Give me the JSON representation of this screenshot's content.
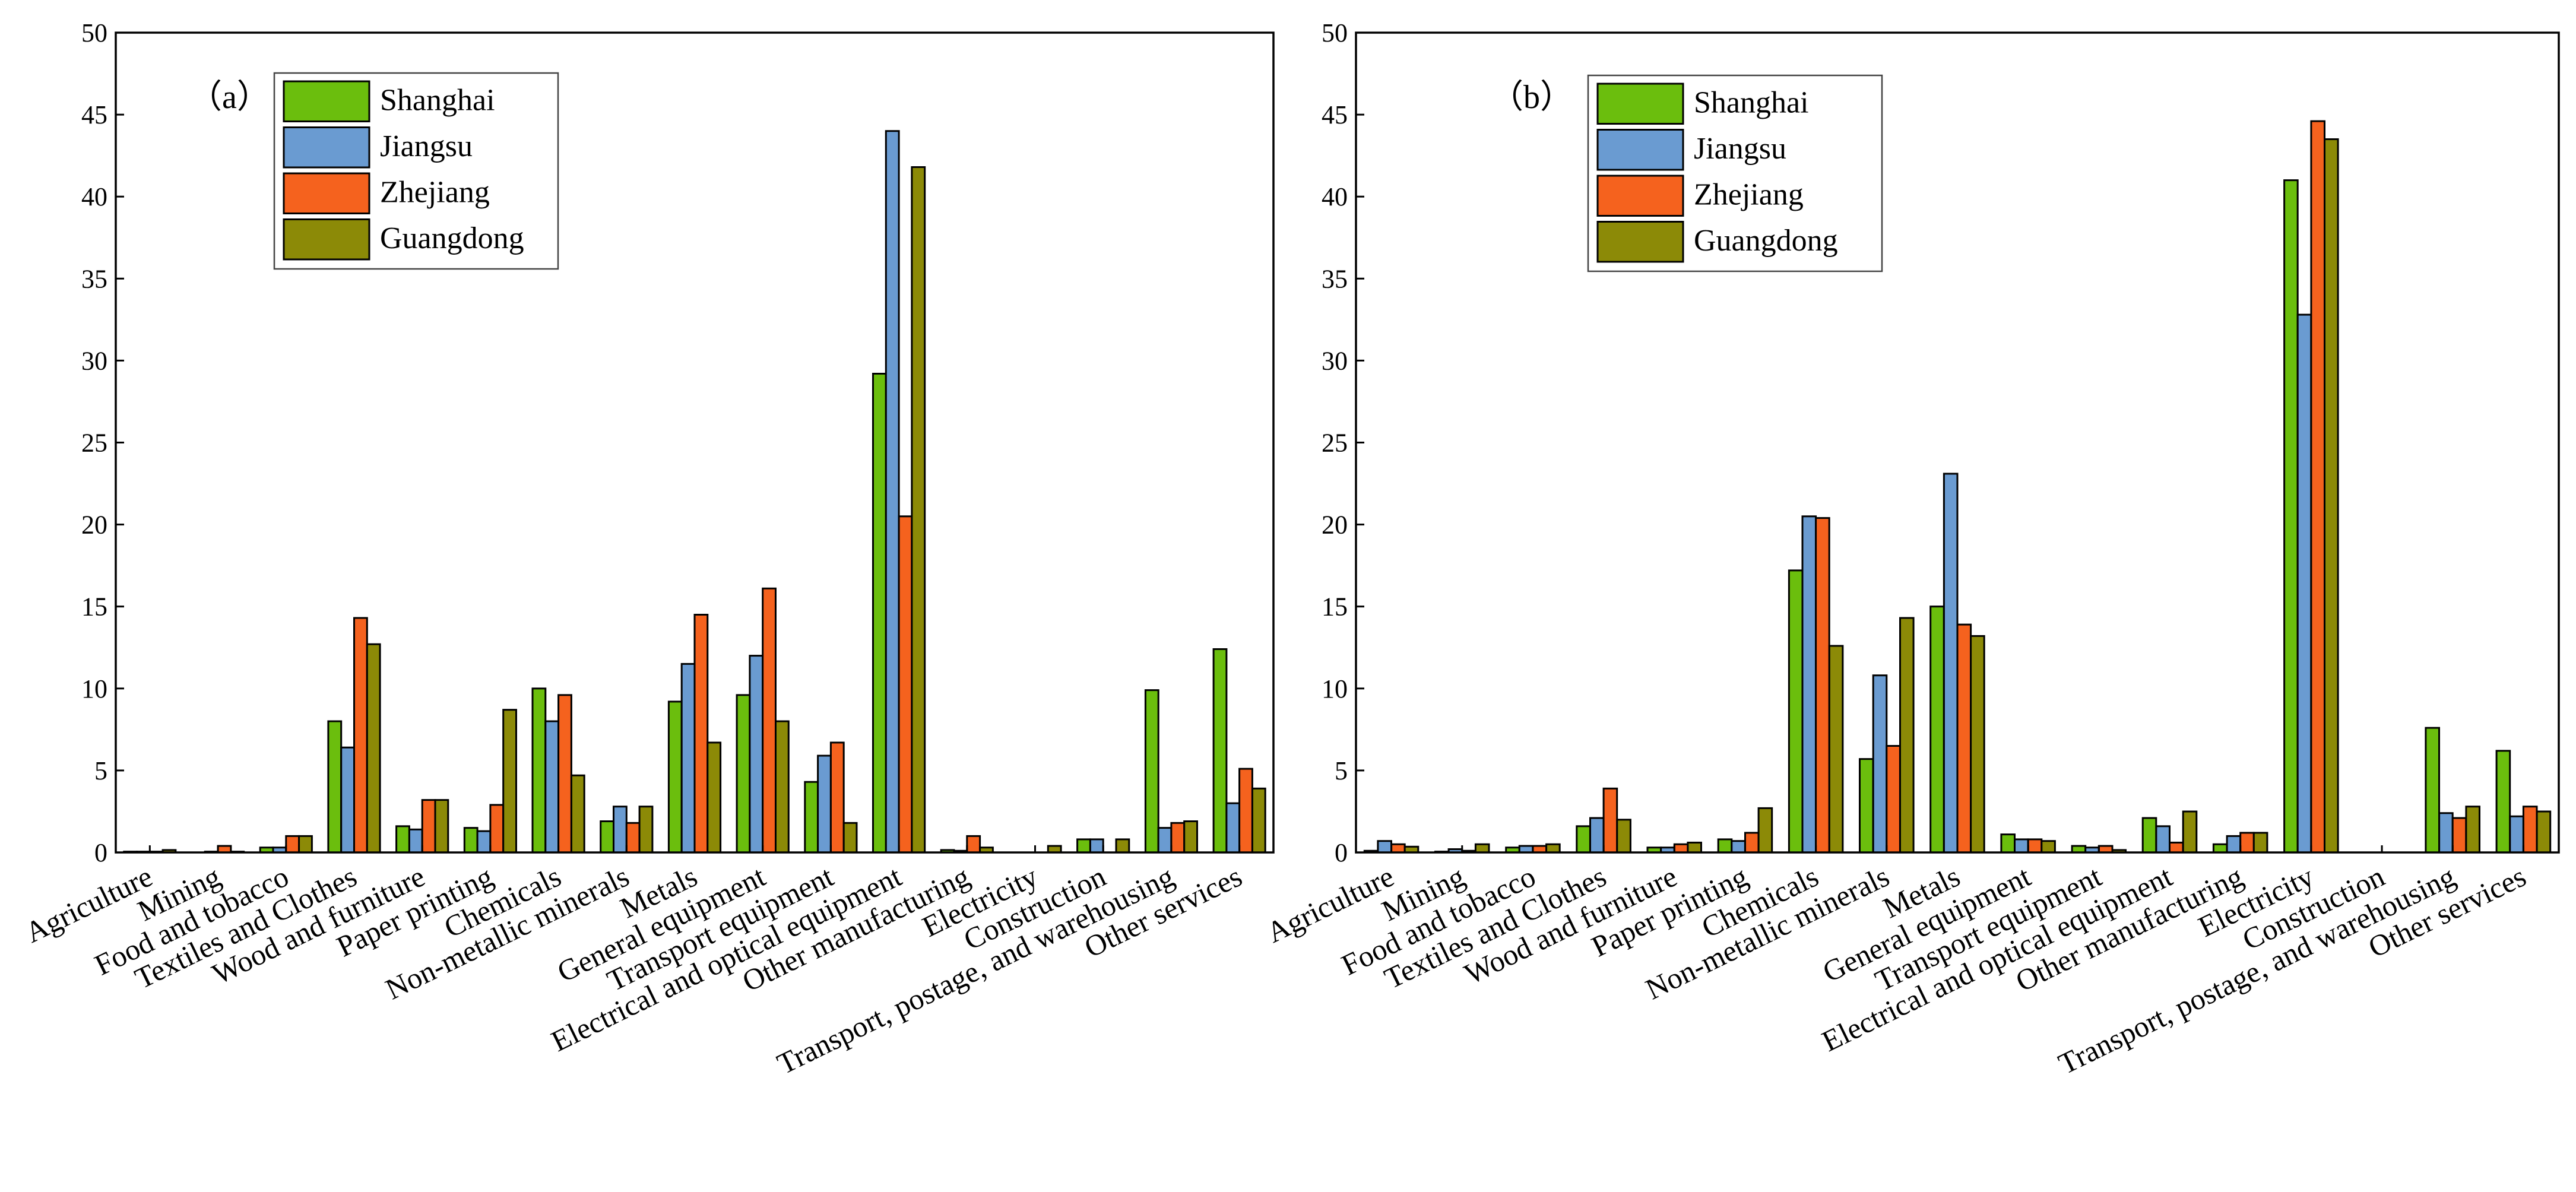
{
  "colors": {
    "Shanghai": "#6BBE0D",
    "Jiangsu": "#6A9BD1",
    "Zhejiang": "#F5621E",
    "Guangdong": "#8C8A07"
  },
  "chart_data": [
    {
      "type": "bar",
      "panel_label": "（a）",
      "categories": [
        "Agriculture",
        "Mining",
        "Food and tobacco",
        "Textiles and Clothes",
        "Wood and furniture",
        "Paper printing",
        "Chemicals",
        "Non-metallic minerals",
        "Metals",
        "General equipment",
        "Transport equipment",
        "Electrical and optical equipment",
        "Other manufacturing",
        "Electricity",
        "Construction",
        "Transport, postage, and warehousing",
        "Other services"
      ],
      "series": [
        {
          "name": "Shanghai",
          "values": [
            0.05,
            0.0,
            0.3,
            8.0,
            1.6,
            1.5,
            10.0,
            1.9,
            9.2,
            9.6,
            4.3,
            29.2,
            0.15,
            0.0,
            0.8,
            9.9,
            12.4
          ]
        },
        {
          "name": "Jiangsu",
          "values": [
            0.05,
            0.05,
            0.3,
            6.4,
            1.4,
            1.3,
            8.0,
            2.8,
            11.5,
            12.0,
            5.9,
            44.0,
            0.1,
            0.0,
            0.8,
            1.5,
            3.0
          ]
        },
        {
          "name": "Zhejiang",
          "values": [
            0.05,
            0.4,
            1.0,
            14.3,
            3.2,
            2.9,
            9.6,
            1.8,
            14.5,
            16.1,
            6.7,
            20.5,
            1.0,
            0.0,
            0.0,
            1.8,
            5.1
          ]
        },
        {
          "name": "Guangdong",
          "values": [
            0.15,
            0.05,
            1.0,
            12.7,
            3.2,
            8.7,
            4.7,
            2.8,
            6.7,
            8.0,
            1.8,
            41.8,
            0.3,
            0.4,
            0.8,
            1.9,
            3.9
          ]
        }
      ],
      "ylim": [
        0,
        50
      ],
      "yticks": [
        0,
        5,
        10,
        15,
        20,
        25,
        30,
        35,
        40,
        45,
        50
      ],
      "xlabel": "",
      "ylabel": "",
      "legend_position": "top-left"
    },
    {
      "type": "bar",
      "panel_label": "（b）",
      "categories": [
        "Agriculture",
        "Mining",
        "Food and tobacco",
        "Textiles and Clothes",
        "Wood and furniture",
        "Paper printing",
        "Chemicals",
        "Non-metallic minerals",
        "Metals",
        "General equipment",
        "Transport equipment",
        "Electrical and optical equipment",
        "Other manufacturing",
        "Electricity",
        "Construction",
        "Transport, postage, and warehousing",
        "Other services"
      ],
      "series": [
        {
          "name": "Shanghai",
          "values": [
            0.1,
            0.05,
            0.3,
            1.6,
            0.3,
            0.8,
            17.2,
            5.7,
            15.0,
            1.1,
            0.4,
            2.1,
            0.5,
            41.0,
            0.0,
            7.6,
            6.2
          ]
        },
        {
          "name": "Jiangsu",
          "values": [
            0.7,
            0.2,
            0.4,
            2.1,
            0.3,
            0.7,
            20.5,
            10.8,
            23.1,
            0.8,
            0.3,
            1.6,
            1.0,
            32.8,
            0.0,
            2.4,
            2.2
          ]
        },
        {
          "name": "Zhejiang",
          "values": [
            0.5,
            0.1,
            0.4,
            3.9,
            0.5,
            1.2,
            20.4,
            6.5,
            13.9,
            0.8,
            0.4,
            0.6,
            1.2,
            44.6,
            0.0,
            2.1,
            2.8
          ]
        },
        {
          "name": "Guangdong",
          "values": [
            0.35,
            0.5,
            0.5,
            2.0,
            0.6,
            2.7,
            12.6,
            14.3,
            13.2,
            0.7,
            0.15,
            2.5,
            1.2,
            43.5,
            0.0,
            2.8,
            2.5
          ]
        }
      ],
      "ylim": [
        0,
        50
      ],
      "yticks": [
        0,
        5,
        10,
        15,
        20,
        25,
        30,
        35,
        40,
        45,
        50
      ],
      "xlabel": "",
      "ylabel": "",
      "legend_position": "top-left"
    }
  ]
}
